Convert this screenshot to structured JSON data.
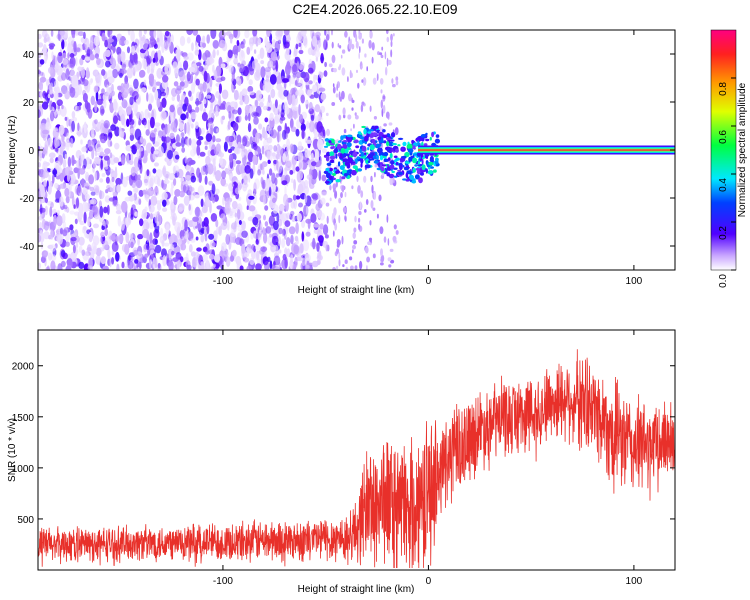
{
  "title": "C2E4.2026.065.22.10.E09",
  "chart_data": [
    {
      "type": "heatmap",
      "xlabel": "Height of straight line (km)",
      "ylabel": "Frequency (Hz)",
      "xlim": [
        -190,
        120
      ],
      "ylim": [
        -50,
        50
      ],
      "xticks": [
        -100,
        0,
        100
      ],
      "yticks": [
        -40,
        -20,
        0,
        20,
        40
      ],
      "colorbar": {
        "label": "Normalized spectral amplitude",
        "range": [
          0,
          1
        ],
        "ticks": [
          "0.0",
          "0.2",
          "0.4",
          "0.6",
          "0.8"
        ]
      },
      "regions": [
        {
          "x_range": [
            -190,
            -50
          ],
          "description_values": {
            "amplitude": 0.1,
            "freq_range": [
              -50,
              50
            ]
          }
        },
        {
          "x_range": [
            -50,
            0
          ],
          "description_values": {
            "amplitude": 0.35,
            "freq_range": [
              -12,
              8
            ]
          }
        },
        {
          "x_range": [
            0,
            120
          ],
          "description_values": {
            "amplitude": 1.0,
            "freq_center": 0
          }
        }
      ]
    },
    {
      "type": "line",
      "xlabel": "Height of straight line (km)",
      "ylabel": "SNR (10 * v/v)",
      "xlim": [
        -190,
        120
      ],
      "ylim": [
        0,
        2350
      ],
      "xticks": [
        -100,
        0,
        100
      ],
      "yticks": [
        500,
        1000,
        1500,
        2000
      ],
      "series": [
        {
          "color": "#e8302a",
          "envelope": {
            "x": [
              -190,
              -150,
              -100,
              -60,
              -40,
              -35,
              -30,
              -20,
              -10,
              0,
              10,
              20,
              30,
              40,
              50,
              60,
              70,
              80,
              90,
              100,
              110,
              120
            ],
            "mean": [
              250,
              260,
              280,
              300,
              320,
              400,
              650,
              700,
              600,
              800,
              1100,
              1300,
              1450,
              1500,
              1550,
              1650,
              1700,
              1600,
              1350,
              1200,
              1250,
              1300
            ],
            "spread": [
              180,
              180,
              200,
              220,
              250,
              350,
              600,
              700,
              650,
              700,
              500,
              450,
              400,
              400,
              400,
              400,
              450,
              500,
              550,
              500,
              450,
              400
            ]
          }
        }
      ]
    }
  ]
}
